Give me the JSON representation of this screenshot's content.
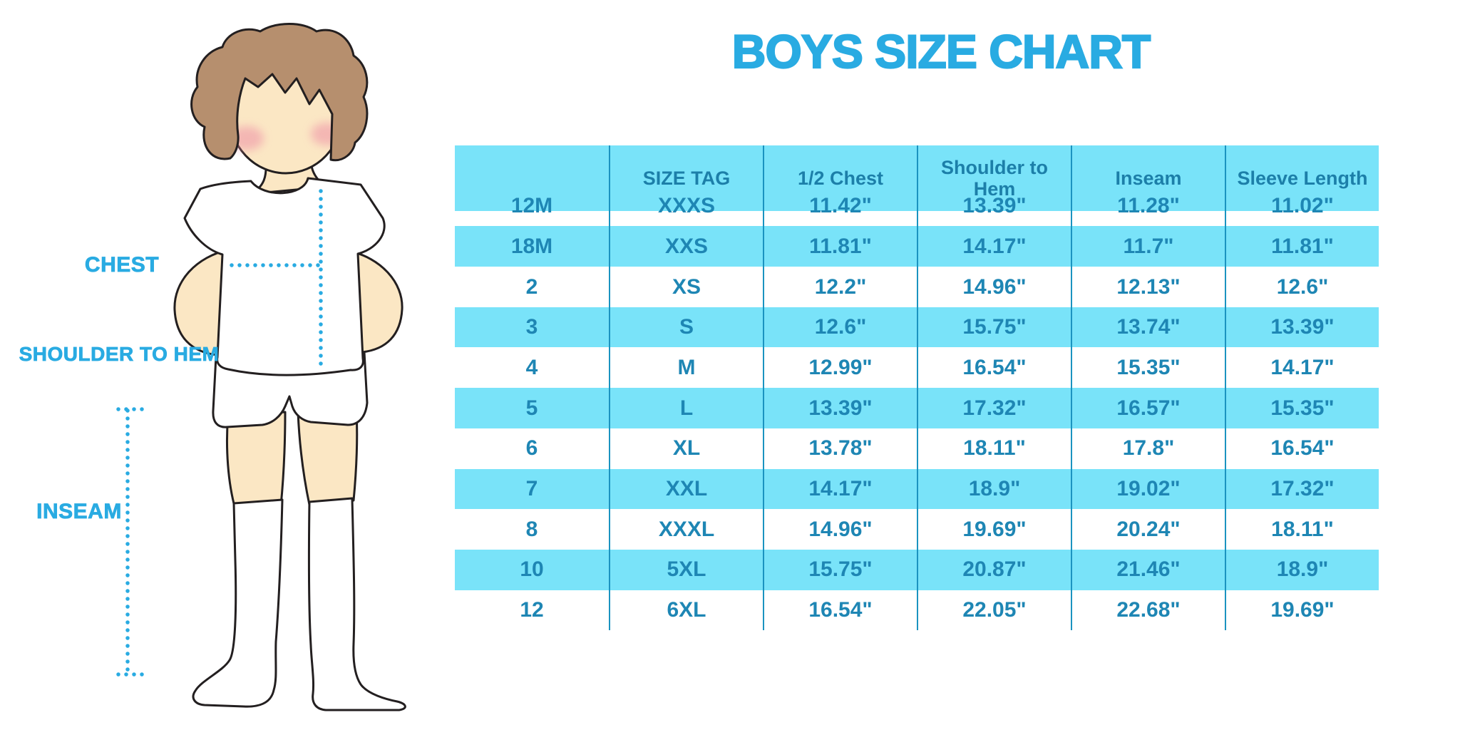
{
  "title": "BOYS SIZE CHART",
  "diagram": {
    "chest_label": "CHEST",
    "shoulder_to_hem_label": "SHOULDER TO HEM",
    "inseam_label": "INSEAM",
    "figure": "boy-in-white-tshirt-shorts-and-knee-socks"
  },
  "chart_data": {
    "type": "table",
    "columns": [
      "",
      "SIZE TAG",
      "1/2 Chest",
      "Shoulder to Hem",
      "Inseam",
      "Sleeve Length"
    ],
    "rows": [
      [
        "12M",
        "XXXS",
        "11.42\"",
        "13.39\"",
        "11.28\"",
        "11.02\""
      ],
      [
        "18M",
        "XXS",
        "11.81\"",
        "14.17\"",
        "11.7\"",
        "11.81\""
      ],
      [
        "2",
        "XS",
        "12.2\"",
        "14.96\"",
        "12.13\"",
        "12.6\""
      ],
      [
        "3",
        "S",
        "12.6\"",
        "15.75\"",
        "13.74\"",
        "13.39\""
      ],
      [
        "4",
        "M",
        "12.99\"",
        "16.54\"",
        "15.35\"",
        "14.17\""
      ],
      [
        "5",
        "L",
        "13.39\"",
        "17.32\"",
        "16.57\"",
        "15.35\""
      ],
      [
        "6",
        "XL",
        "13.78\"",
        "18.11\"",
        "17.8\"",
        "16.54\""
      ],
      [
        "7",
        "XXL",
        "14.17\"",
        "18.9\"",
        "19.02\"",
        "17.32\""
      ],
      [
        "8",
        "XXXL",
        "14.96\"",
        "19.69\"",
        "20.24\"",
        "18.11\""
      ],
      [
        "10",
        "5XL",
        "15.75\"",
        "20.87\"",
        "21.46\"",
        "18.9\""
      ],
      [
        "12",
        "6XL",
        "16.54\"",
        "22.05\"",
        "22.68\"",
        "19.69\""
      ]
    ],
    "striped_rows": [
      "18M",
      "3",
      "5",
      "7",
      "10"
    ],
    "header_background": "#79E3F9",
    "stripe_background": "#79E3F9"
  },
  "colors": {
    "accent_blue": "#29ABE2",
    "table_text": "#1E86B4",
    "header_text": "#1C7FA9",
    "stripe_fill": "#79E3F9",
    "column_border": "#1B93C0",
    "skin": "#FBE7C4",
    "hair": "#B68F6E",
    "blush": "#EE8FA6",
    "outline": "#231F20",
    "dotted_line": "#29ABE2"
  }
}
